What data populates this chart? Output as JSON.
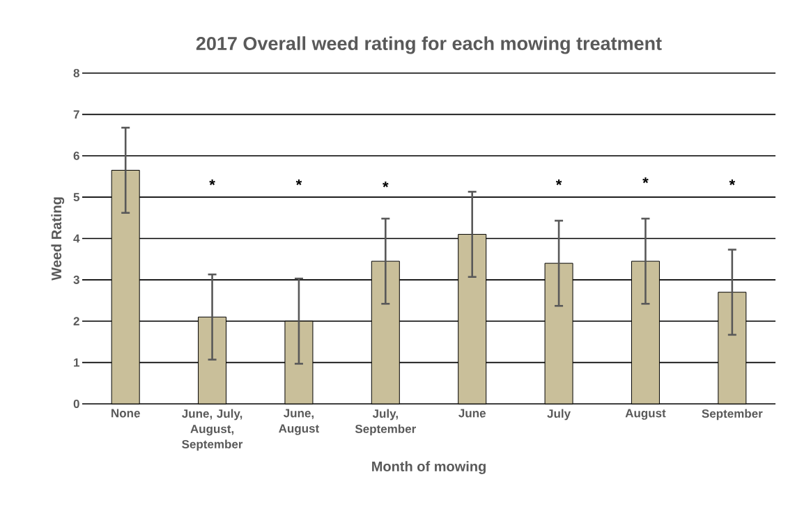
{
  "chart_data": {
    "type": "bar",
    "title": "2017 Overall weed rating for each mowing treatment",
    "xlabel": "Month of mowing",
    "ylabel": "Weed Rating",
    "categories": [
      "None",
      "June, July, August, September",
      "June, August",
      "July, September",
      "June",
      "July",
      "August",
      "September"
    ],
    "values": [
      5.65,
      2.1,
      2.0,
      3.45,
      4.1,
      3.4,
      3.45,
      2.7
    ],
    "errors": [
      1.03,
      1.03,
      1.03,
      1.03,
      1.03,
      1.03,
      1.03,
      1.03
    ],
    "color": "#c9bf9a",
    "ylim": [
      0,
      8
    ],
    "yticks": [
      0,
      1,
      2,
      3,
      4,
      5,
      6,
      7,
      8
    ],
    "grid": "y",
    "annotations": [
      "*",
      "*",
      "*",
      "*",
      "*",
      "*"
    ]
  }
}
